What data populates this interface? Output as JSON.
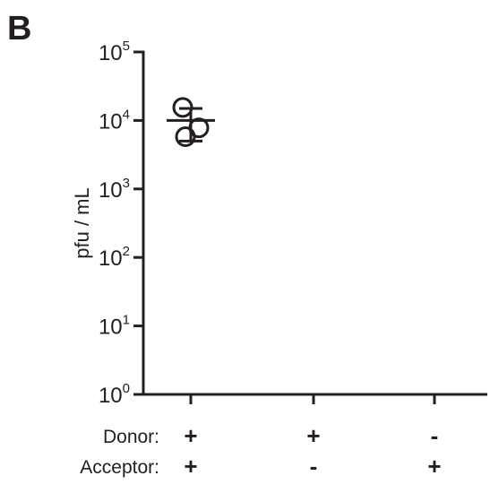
{
  "panel_label": "B",
  "chart_data": {
    "type": "scatter",
    "title": "",
    "xlabel": "",
    "ylabel": "pfu / mL",
    "y_scale": "log",
    "ylim": [
      1,
      100000
    ],
    "y_ticks": [
      {
        "value": 1,
        "base": "10",
        "exponent": "0"
      },
      {
        "value": 10,
        "base": "10",
        "exponent": "1"
      },
      {
        "value": 100,
        "base": "10",
        "exponent": "2"
      },
      {
        "value": 1000,
        "base": "10",
        "exponent": "3"
      },
      {
        "value": 10000,
        "base": "10",
        "exponent": "4"
      },
      {
        "value": 100000,
        "base": "10",
        "exponent": "5"
      }
    ],
    "condition_rows": [
      {
        "label": "Donor:",
        "values": [
          "+",
          "+",
          "-"
        ]
      },
      {
        "label": "Acceptor:",
        "values": [
          "+",
          "-",
          "+"
        ]
      }
    ],
    "groups": [
      {
        "points": [
          15500,
          7800,
          5800
        ],
        "mean": 10000,
        "sd": 5000
      },
      {
        "points": [],
        "mean": null,
        "sd": null
      },
      {
        "points": [],
        "mean": null,
        "sd": null
      }
    ],
    "grid": false,
    "marker": "open-circle",
    "color": "#231f20"
  }
}
